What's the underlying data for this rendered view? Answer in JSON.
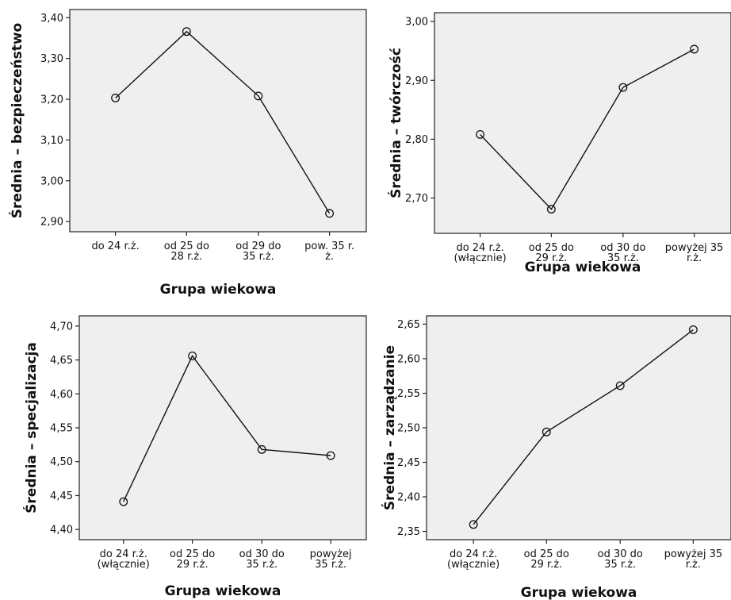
{
  "chart_data": [
    {
      "type": "line",
      "xlabel": "Grupa wiekowa",
      "ylabel": "Średnia – bezpieczeństwo",
      "categories": [
        [
          "do 24 r.ż."
        ],
        [
          "od 25 do",
          "28 r.ż."
        ],
        [
          "od 29 do",
          "35 r.ż."
        ],
        [
          "pow. 35 r.",
          "ż."
        ]
      ],
      "values": [
        3.203,
        3.366,
        3.208,
        2.92
      ],
      "ylim": [
        2.875,
        3.42
      ],
      "yticks": [
        "2,90",
        "3,00",
        "3,10",
        "3,20",
        "3,30",
        "3,40"
      ],
      "ytick_values": [
        2.9,
        3.0,
        3.1,
        3.2,
        3.3,
        3.4
      ]
    },
    {
      "type": "line",
      "xlabel": "Grupa wiekowa",
      "ylabel": "Średnia – twórczość",
      "categories": [
        [
          "do 24 r.ż.",
          "(włącznie)"
        ],
        [
          "od 25 do",
          "29 r.ż."
        ],
        [
          "od 30 do",
          "35 r.ż."
        ],
        [
          "powyżej 35",
          "r.ż."
        ]
      ],
      "values": [
        2.808,
        2.681,
        2.888,
        2.953
      ],
      "ylim": [
        2.64,
        3.015
      ],
      "yticks": [
        "2,70",
        "2,80",
        "2,90",
        "3,00"
      ],
      "ytick_values": [
        2.7,
        2.8,
        2.9,
        3.0
      ]
    },
    {
      "type": "line",
      "xlabel": "Grupa wiekowa",
      "ylabel": "Średnia – specjalizacja",
      "categories": [
        [
          "do 24 r.ż.",
          "(włącznie)"
        ],
        [
          "od 25 do",
          "29 r.ż."
        ],
        [
          "od 30 do",
          "35 r.ż."
        ],
        [
          "powyżej",
          "35 r.ż."
        ]
      ],
      "values": [
        4.441,
        4.656,
        4.518,
        4.509
      ],
      "ylim": [
        4.385,
        4.715
      ],
      "yticks": [
        "4,40",
        "4,45",
        "4,50",
        "4,55",
        "4,60",
        "4,65",
        "4,70"
      ],
      "ytick_values": [
        4.4,
        4.45,
        4.5,
        4.55,
        4.6,
        4.65,
        4.7
      ]
    },
    {
      "type": "line",
      "xlabel": "Grupa wiekowa",
      "ylabel": "Średnia – zarządzanie",
      "categories": [
        [
          "do 24 r.ż.",
          "(włącznie)"
        ],
        [
          "od 25 do",
          "29 r.ż."
        ],
        [
          "od 30 do",
          "35 r.ż."
        ],
        [
          "powyżej 35",
          "r.ż."
        ]
      ],
      "values": [
        2.36,
        2.494,
        2.561,
        2.642
      ],
      "ylim": [
        2.338,
        2.662
      ],
      "yticks": [
        "2,35",
        "2,40",
        "2,45",
        "2,50",
        "2,55",
        "2,60",
        "2,65"
      ],
      "ytick_values": [
        2.35,
        2.4,
        2.45,
        2.5,
        2.55,
        2.6,
        2.65
      ]
    }
  ]
}
